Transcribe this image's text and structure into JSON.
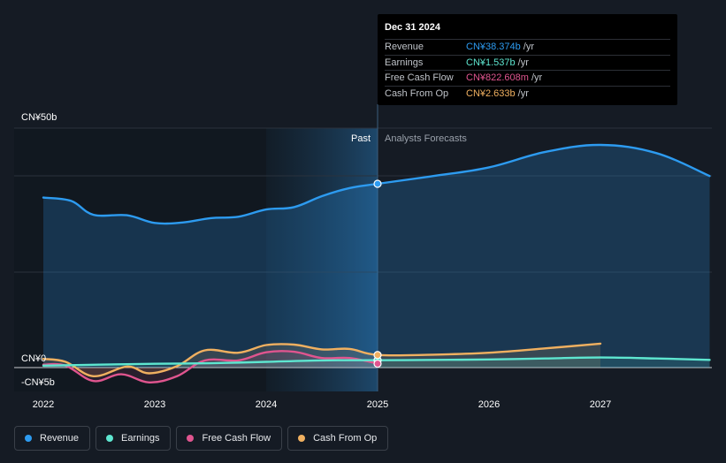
{
  "tooltip": {
    "date": "Dec 31 2024",
    "rows": [
      {
        "name": "Revenue",
        "value": "CN¥38.374b",
        "unit": "/yr",
        "color": "#2d9bf0"
      },
      {
        "name": "Earnings",
        "value": "CN¥1.537b",
        "unit": "/yr",
        "color": "#5ee6d0"
      },
      {
        "name": "Free Cash Flow",
        "value": "CN¥822.608m",
        "unit": "/yr",
        "color": "#e0558f"
      },
      {
        "name": "Cash From Op",
        "value": "CN¥2.633b",
        "unit": "/yr",
        "color": "#f0b060"
      }
    ]
  },
  "legend": [
    {
      "label": "Revenue",
      "color": "#2d9bf0"
    },
    {
      "label": "Earnings",
      "color": "#5ee6d0"
    },
    {
      "label": "Free Cash Flow",
      "color": "#e0558f"
    },
    {
      "label": "Cash From Op",
      "color": "#f0b060"
    }
  ],
  "chart_data": {
    "type": "line",
    "y_tick_labels": [
      "CN¥50b",
      "CN¥0",
      "-CN¥5b"
    ],
    "ylim": [
      -5,
      50
    ],
    "x_ticks": [
      2022,
      2023,
      2024,
      2025,
      2026,
      2027
    ],
    "x_tick_labels": [
      "2022",
      "2023",
      "2024",
      "2025",
      "2026",
      "2027"
    ],
    "xlim": [
      2021.75,
      2027.98
    ],
    "past_label": "Past",
    "forecast_label": "Analysts Forecasts",
    "divider_x": 2025.0,
    "highlight_start": 2024.0,
    "series": [
      {
        "name": "Revenue",
        "color": "#2d9bf0",
        "points": [
          [
            2022.0,
            35.5
          ],
          [
            2022.25,
            34.8
          ],
          [
            2022.45,
            31.9
          ],
          [
            2022.75,
            31.8
          ],
          [
            2023.0,
            30.2
          ],
          [
            2023.25,
            30.3
          ],
          [
            2023.5,
            31.2
          ],
          [
            2023.75,
            31.5
          ],
          [
            2024.0,
            33.0
          ],
          [
            2024.25,
            33.5
          ],
          [
            2024.5,
            35.8
          ],
          [
            2024.75,
            37.5
          ],
          [
            2025.0,
            38.374
          ],
          [
            2025.5,
            40.0
          ],
          [
            2026.0,
            41.8
          ],
          [
            2026.5,
            45.0
          ],
          [
            2027.0,
            46.5
          ],
          [
            2027.5,
            44.8
          ],
          [
            2027.98,
            40.0
          ]
        ]
      },
      {
        "name": "Earnings",
        "color": "#5ee6d0",
        "points": [
          [
            2022.0,
            0.4
          ],
          [
            2022.5,
            0.6
          ],
          [
            2023.0,
            0.8
          ],
          [
            2023.5,
            0.9
          ],
          [
            2024.0,
            1.2
          ],
          [
            2024.5,
            1.5
          ],
          [
            2025.0,
            1.537
          ],
          [
            2025.5,
            1.6
          ],
          [
            2026.0,
            1.7
          ],
          [
            2026.5,
            1.9
          ],
          [
            2027.0,
            2.1
          ],
          [
            2027.5,
            1.9
          ],
          [
            2027.98,
            1.6
          ]
        ]
      },
      {
        "name": "Free Cash Flow",
        "color": "#e0558f",
        "points": [
          [
            2022.0,
            0.6
          ],
          [
            2022.2,
            0.4
          ],
          [
            2022.45,
            -2.8
          ],
          [
            2022.7,
            -1.4
          ],
          [
            2022.95,
            -3.1
          ],
          [
            2023.2,
            -1.8
          ],
          [
            2023.45,
            1.5
          ],
          [
            2023.75,
            1.5
          ],
          [
            2024.0,
            3.2
          ],
          [
            2024.25,
            3.3
          ],
          [
            2024.5,
            2.0
          ],
          [
            2024.75,
            2.0
          ],
          [
            2025.0,
            0.823
          ]
        ]
      },
      {
        "name": "Cash From Op",
        "color": "#f0b060",
        "points": [
          [
            2022.0,
            1.8
          ],
          [
            2022.2,
            1.2
          ],
          [
            2022.45,
            -1.8
          ],
          [
            2022.75,
            0.2
          ],
          [
            2022.95,
            -1.2
          ],
          [
            2023.2,
            0.3
          ],
          [
            2023.45,
            3.6
          ],
          [
            2023.75,
            3.1
          ],
          [
            2024.0,
            4.7
          ],
          [
            2024.25,
            4.8
          ],
          [
            2024.5,
            3.8
          ],
          [
            2024.75,
            3.9
          ],
          [
            2025.0,
            2.633
          ],
          [
            2025.5,
            2.7
          ],
          [
            2026.0,
            3.1
          ],
          [
            2026.5,
            4.0
          ],
          [
            2027.0,
            5.0
          ]
        ]
      }
    ]
  }
}
